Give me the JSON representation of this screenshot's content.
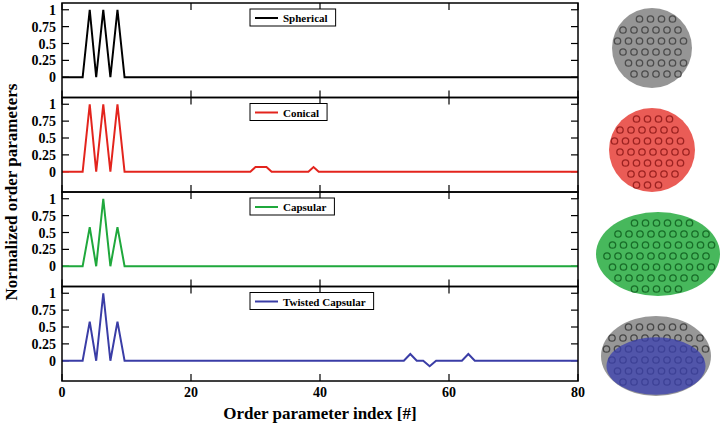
{
  "chart_data": [
    {
      "type": "line",
      "ylabel": "Normalized order parameters",
      "xlim": [
        0,
        80
      ],
      "xticks": [
        0,
        20,
        40,
        60,
        80
      ],
      "ylim": [
        -0.3,
        1.1
      ],
      "yticks": [
        0,
        0.25,
        0.5,
        0.75,
        1
      ],
      "tick_labels": "y",
      "legend": "upper center",
      "x": [
        0,
        3.2,
        4.3,
        5.3,
        6.4,
        7.5,
        8.6,
        9.7,
        80
      ],
      "series": [
        {
          "name": "Spherical",
          "color": "#000000",
          "values": [
            0,
            0,
            1,
            0,
            1,
            0,
            1,
            0,
            0
          ]
        }
      ]
    },
    {
      "type": "line",
      "xlim": [
        0,
        80
      ],
      "xticks": [
        0,
        20,
        40,
        60,
        80
      ],
      "ylim": [
        -0.3,
        1.1
      ],
      "yticks": [
        0,
        0.25,
        0.5,
        0.75,
        1
      ],
      "tick_labels": "y",
      "legend": "upper center",
      "x": [
        0,
        3.2,
        4.3,
        5.3,
        6.4,
        7.5,
        8.6,
        9.7,
        29.2,
        30,
        31.7,
        32.5,
        38.2,
        39,
        39.8,
        80
      ],
      "series": [
        {
          "name": "Conical",
          "color": "#e3241d",
          "values": [
            0,
            0,
            1,
            0,
            1,
            0,
            1,
            0,
            0,
            0.07,
            0.07,
            0,
            0,
            0.07,
            0,
            0
          ]
        }
      ]
    },
    {
      "type": "line",
      "xlim": [
        0,
        80
      ],
      "xticks": [
        0,
        20,
        40,
        60,
        80
      ],
      "ylim": [
        -0.3,
        1.1
      ],
      "yticks": [
        0,
        0.25,
        0.5,
        0.75,
        1
      ],
      "tick_labels": "y",
      "legend": "upper center",
      "x": [
        0,
        3.2,
        4.3,
        5.3,
        6.4,
        7.5,
        8.6,
        9.7,
        80
      ],
      "series": [
        {
          "name": "Capsular",
          "color": "#1fa83c",
          "values": [
            0,
            0,
            0.58,
            0,
            1,
            0,
            0.58,
            0,
            0
          ]
        }
      ]
    },
    {
      "type": "line",
      "xlabel": "Order parameter index [#]",
      "xlim": [
        0,
        80
      ],
      "xticks": [
        0,
        20,
        40,
        60,
        80
      ],
      "ylim": [
        -0.3,
        1.1
      ],
      "yticks": [
        0,
        0.25,
        0.5,
        0.75,
        1
      ],
      "legend": "upper center",
      "x": [
        0,
        3.2,
        4.3,
        5.3,
        6.4,
        7.5,
        8.6,
        9.7,
        53,
        54,
        55,
        56,
        57,
        58,
        62,
        63,
        64,
        80
      ],
      "series": [
        {
          "name": "Twisted Capsular",
          "color": "#3a3da6",
          "values": [
            0,
            0,
            0.58,
            0,
            1,
            0,
            0.58,
            0,
            0,
            0.1,
            0,
            0,
            -0.08,
            0,
            0,
            0.1,
            0,
            0
          ]
        }
      ]
    }
  ]
}
